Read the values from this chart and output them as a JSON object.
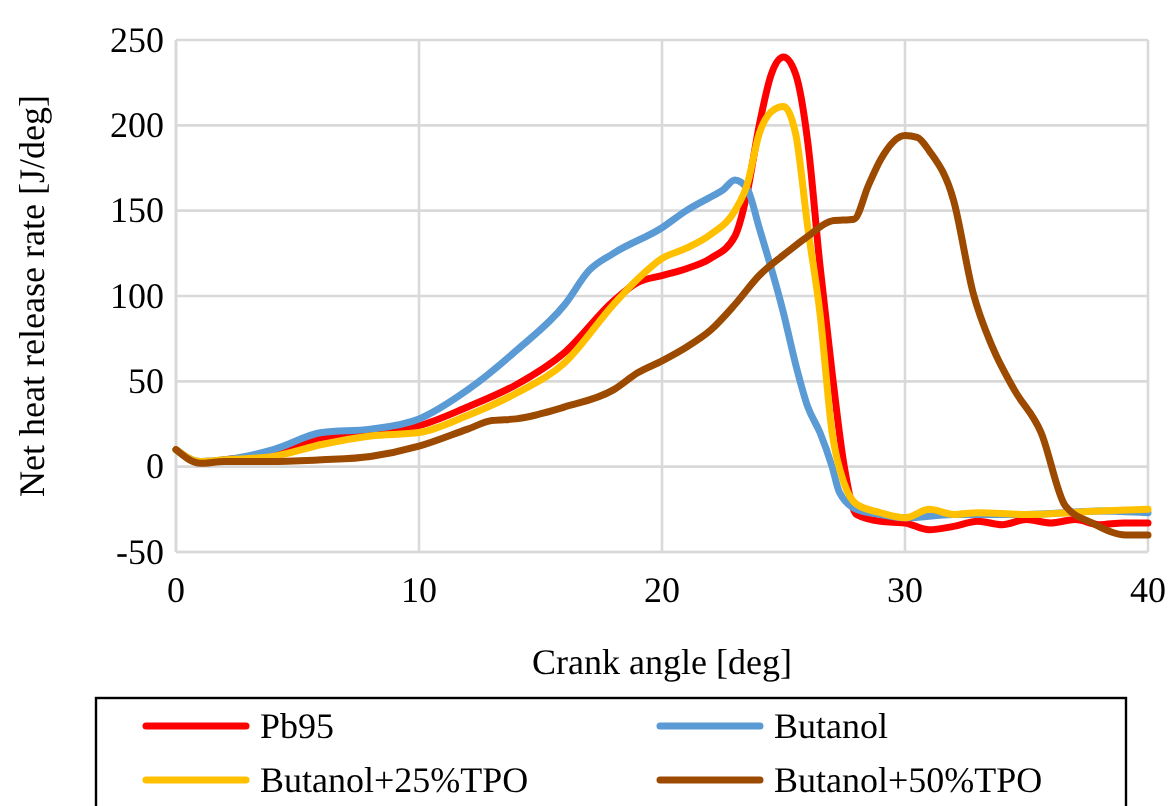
{
  "chart_data": {
    "type": "line",
    "xlabel": "Crank angle [deg]",
    "ylabel": "Net heat release rate [J/deg]",
    "xlim": [
      0,
      40
    ],
    "xticks": [
      0,
      10,
      20,
      30,
      40
    ],
    "ylim": [
      -50,
      250
    ],
    "yticks": [
      -50,
      0,
      50,
      100,
      150,
      200,
      250
    ],
    "grid": true,
    "legend": "bottom",
    "marker": "none",
    "line_style": "solid",
    "series": [
      {
        "name": "Pb95",
        "color": "#ff0000",
        "x": [
          2,
          4,
          6,
          8,
          10,
          12,
          14,
          16,
          18,
          19,
          20,
          21,
          22,
          23,
          23.5,
          24,
          24.5,
          25,
          25.5,
          26,
          26.5,
          27,
          27.5,
          28,
          29,
          30,
          31,
          32,
          33,
          34,
          35,
          36,
          37,
          38,
          39,
          40
        ],
        "values": [
          4,
          8,
          17,
          20,
          24,
          35,
          48,
          67,
          97,
          108,
          112,
          116,
          122,
          135,
          160,
          200,
          230,
          240,
          230,
          190,
          118,
          55,
          0,
          -28,
          -32,
          -33,
          -37,
          -35,
          -32,
          -34,
          -31,
          -33,
          -31,
          -34,
          -33,
          -33
        ]
      },
      {
        "name": "Butanol",
        "color": "#5b9bd5",
        "x": [
          0,
          1,
          2,
          4,
          6,
          8,
          10,
          12,
          14,
          16,
          17,
          18,
          20,
          21,
          22,
          22.5,
          23,
          23.5,
          24,
          25,
          25.5,
          26,
          26.5,
          27,
          27.3,
          28,
          29,
          30,
          32,
          35,
          38,
          40
        ],
        "values": [
          10,
          3,
          4,
          10,
          20,
          22,
          28,
          45,
          68,
          95,
          115,
          125,
          140,
          150,
          158,
          162,
          168,
          163,
          140,
          90,
          60,
          35,
          20,
          0,
          -15,
          -25,
          -28,
          -30,
          -28,
          -28,
          -26,
          -27
        ]
      },
      {
        "name": "Butanol+25%TPO",
        "color": "#ffc000",
        "x": [
          0,
          1,
          2,
          4,
          6,
          8,
          10,
          12,
          14,
          16,
          18,
          19,
          20,
          21,
          22,
          23,
          23.5,
          24,
          24.5,
          25,
          25.5,
          26,
          26.5,
          27,
          27.5,
          28,
          29,
          30,
          31,
          32,
          33,
          35,
          38,
          40
        ],
        "values": [
          10,
          3,
          4,
          6,
          13,
          18,
          20,
          30,
          43,
          61,
          95,
          110,
          122,
          128,
          136,
          150,
          165,
          195,
          208,
          211,
          195,
          140,
          90,
          20,
          -10,
          -22,
          -27,
          -30,
          -25,
          -28,
          -27,
          -28,
          -26,
          -25
        ]
      },
      {
        "name": "Butanol+50%TPO",
        "color": "#9c4a00",
        "x": [
          0,
          1,
          2,
          4,
          6,
          8,
          10,
          12,
          13,
          14,
          16,
          18,
          19,
          20,
          21,
          22,
          23,
          24,
          25,
          26,
          27,
          27.9,
          28.5,
          29,
          30,
          30.5,
          31,
          32,
          32.8,
          33.6,
          34.5,
          35.6,
          36.6,
          37.7,
          39.1,
          40
        ],
        "values": [
          10,
          2,
          3,
          3,
          4,
          6,
          12,
          22,
          27,
          28,
          35,
          45,
          55,
          62,
          70,
          80,
          95,
          112,
          124,
          135,
          144,
          145,
          165,
          180,
          194,
          193,
          185,
          156,
          102,
          70,
          45,
          20,
          -23,
          -33,
          -40,
          -40
        ]
      }
    ]
  }
}
